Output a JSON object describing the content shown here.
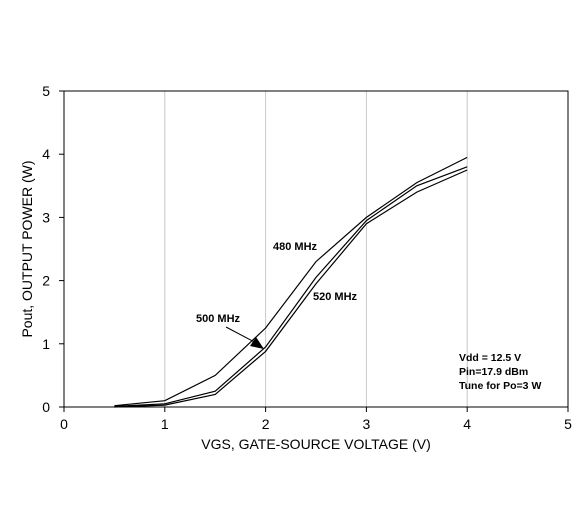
{
  "chart_data": {
    "type": "line",
    "title": "",
    "xlabel": "VGS, GATE-SOURCE VOLTAGE (V)",
    "ylabel": "Pout, OUTPUT POWER (W)",
    "xlim": [
      0,
      5
    ],
    "ylim": [
      0,
      5
    ],
    "x_ticks": [
      0,
      1,
      2,
      3,
      4,
      5
    ],
    "y_ticks": [
      0,
      1,
      2,
      3,
      4,
      5
    ],
    "grid": "vertical",
    "series": [
      {
        "name": "480 MHz",
        "x": [
          0.5,
          1.0,
          1.5,
          2.0,
          2.5,
          3.0,
          3.5,
          4.0
        ],
        "y": [
          0.02,
          0.1,
          0.5,
          1.25,
          2.3,
          3.0,
          3.55,
          3.95
        ]
      },
      {
        "name": "500 MHz",
        "x": [
          0.5,
          1.0,
          1.5,
          2.0,
          2.5,
          3.0,
          3.5,
          4.0
        ],
        "y": [
          0.01,
          0.05,
          0.25,
          0.95,
          2.05,
          2.95,
          3.5,
          3.8
        ]
      },
      {
        "name": "520 MHz",
        "x": [
          0.5,
          1.0,
          1.5,
          2.0,
          2.5,
          3.0,
          3.5,
          4.0
        ],
        "y": [
          0.0,
          0.03,
          0.2,
          0.88,
          1.95,
          2.9,
          3.4,
          3.75
        ]
      }
    ],
    "annotations": [
      "Vdd = 12.5 V",
      "Pin=17.9 dBm",
      "Tune for Po=3 W"
    ],
    "colors": {
      "line": "#000000",
      "grid": "#c8c8c8"
    }
  }
}
